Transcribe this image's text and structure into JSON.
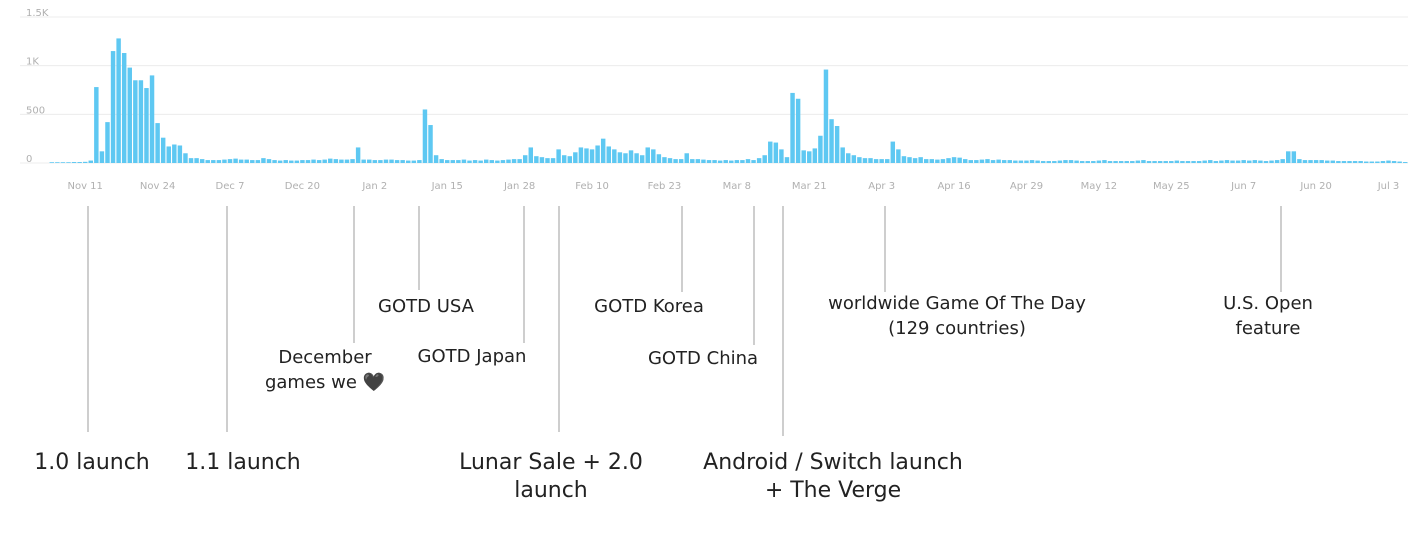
{
  "chart_data": {
    "type": "bar",
    "categories": [
      null,
      null,
      null,
      null,
      null,
      null,
      "Nov 11",
      null,
      null,
      null,
      null,
      null,
      null,
      null,
      null,
      null,
      null,
      null,
      null,
      "Nov 24",
      null,
      null,
      null,
      null,
      null,
      null,
      null,
      null,
      null,
      null,
      null,
      null,
      "Dec 7",
      null,
      null,
      null,
      null,
      null,
      null,
      null,
      null,
      null,
      null,
      null,
      null,
      "Dec 20",
      null,
      null,
      null,
      null,
      null,
      null,
      null,
      null,
      null,
      null,
      null,
      null,
      "Jan 2",
      null,
      null,
      null,
      null,
      null,
      null,
      null,
      null,
      null,
      null,
      null,
      null,
      "Jan 15",
      null,
      null,
      null,
      null,
      null,
      null,
      null,
      null,
      null,
      null,
      null,
      null,
      "Jan 28",
      null,
      null,
      null,
      null,
      null,
      null,
      null,
      null,
      null,
      null,
      null,
      null,
      "Feb 10",
      null,
      null,
      null,
      null,
      null,
      null,
      null,
      null,
      null,
      null,
      null,
      null,
      "Feb 23",
      null,
      null,
      null,
      null,
      null,
      null,
      null,
      null,
      null,
      null,
      null,
      null,
      "Mar 8",
      null,
      null,
      null,
      null,
      null,
      null,
      null,
      null,
      null,
      null,
      null,
      null,
      "Mar 21",
      null,
      null,
      null,
      null,
      null,
      null,
      null,
      null,
      null,
      null,
      null,
      null,
      "Apr 3",
      null,
      null,
      null,
      null,
      null,
      null,
      null,
      null,
      null,
      null,
      null,
      null,
      "Apr 16",
      null,
      null,
      null,
      null,
      null,
      null,
      null,
      null,
      null,
      null,
      null,
      null,
      "Apr 29",
      null,
      null,
      null,
      null,
      null,
      null,
      null,
      null,
      null,
      null,
      null,
      null,
      "May 12",
      null,
      null,
      null,
      null,
      null,
      null,
      null,
      null,
      null,
      null,
      null,
      null,
      "May 25",
      null,
      null,
      null,
      null,
      null,
      null,
      null,
      null,
      null,
      null,
      null,
      null,
      "Jun 7",
      null,
      null,
      null,
      null,
      null,
      null,
      null,
      null,
      null,
      null,
      null,
      null,
      "Jun 20",
      null,
      null,
      null,
      null,
      null,
      null,
      null,
      null,
      null,
      null,
      null,
      null,
      "Jul 3",
      null,
      null,
      null
    ],
    "values": [
      8,
      8,
      8,
      8,
      10,
      10,
      12,
      25,
      780,
      120,
      420,
      1150,
      1280,
      1130,
      980,
      850,
      850,
      770,
      900,
      410,
      260,
      170,
      190,
      180,
      100,
      50,
      50,
      40,
      30,
      30,
      30,
      35,
      40,
      45,
      35,
      35,
      30,
      30,
      50,
      40,
      30,
      25,
      30,
      25,
      25,
      30,
      30,
      35,
      30,
      35,
      45,
      40,
      35,
      35,
      40,
      160,
      35,
      35,
      30,
      30,
      35,
      35,
      30,
      30,
      25,
      25,
      30,
      550,
      390,
      80,
      40,
      30,
      30,
      30,
      35,
      25,
      30,
      25,
      35,
      30,
      25,
      30,
      35,
      40,
      40,
      80,
      160,
      70,
      60,
      50,
      50,
      140,
      80,
      70,
      110,
      160,
      150,
      140,
      180,
      250,
      170,
      140,
      110,
      100,
      130,
      100,
      80,
      160,
      140,
      90,
      60,
      50,
      40,
      40,
      100,
      40,
      40,
      35,
      30,
      30,
      25,
      30,
      25,
      30,
      30,
      40,
      30,
      50,
      80,
      220,
      210,
      140,
      60,
      720,
      660,
      130,
      120,
      150,
      280,
      960,
      450,
      380,
      160,
      100,
      80,
      60,
      50,
      50,
      40,
      40,
      40,
      220,
      140,
      70,
      60,
      50,
      60,
      40,
      40,
      35,
      40,
      50,
      60,
      55,
      40,
      30,
      30,
      35,
      40,
      30,
      35,
      30,
      30,
      25,
      25,
      25,
      30,
      25,
      20,
      20,
      20,
      25,
      30,
      30,
      25,
      20,
      20,
      20,
      25,
      30,
      20,
      20,
      20,
      20,
      20,
      25,
      30,
      20,
      20,
      20,
      20,
      20,
      25,
      20,
      20,
      20,
      20,
      25,
      30,
      20,
      25,
      30,
      25,
      25,
      30,
      25,
      30,
      25,
      20,
      25,
      30,
      40,
      120,
      120,
      40,
      30,
      30,
      30,
      30,
      25,
      25,
      20,
      20,
      20,
      20,
      20,
      15,
      15,
      15,
      20,
      25,
      20,
      15,
      10
    ],
    "color": "#5ec8f2",
    "ylim": [
      0,
      1500
    ],
    "yticks": [
      0,
      500,
      {
        "value": 1000,
        "label": "1K"
      },
      {
        "value": 1500,
        "label": "1.5K"
      }
    ],
    "grid": true,
    "annotations": [
      {
        "lines": [
          "1.0 launch"
        ]
      },
      {
        "lines": [
          "1.1 launch"
        ]
      },
      {
        "lines": [
          "December",
          "games we 🖤"
        ]
      },
      {
        "lines": [
          "GOTD USA"
        ]
      },
      {
        "lines": [
          "GOTD Japan"
        ]
      },
      {
        "lines": [
          "Lunar Sale + 2.0",
          "launch"
        ]
      },
      {
        "lines": [
          "GOTD Korea"
        ]
      },
      {
        "lines": [
          "GOTD China"
        ]
      },
      {
        "lines": [
          "Android / Switch launch",
          "+ The Verge"
        ]
      },
      {
        "lines": [
          "worldwide Game Of The Day",
          "(129 countries)"
        ]
      },
      {
        "lines": [
          "U.S. Open",
          "feature"
        ]
      }
    ]
  }
}
